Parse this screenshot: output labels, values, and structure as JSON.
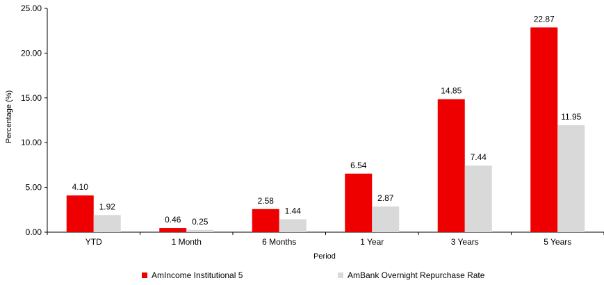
{
  "chart_data": {
    "type": "bar",
    "categories": [
      "YTD",
      "1 Month",
      "6 Months",
      "1 Year",
      "3 Years",
      "5 Years"
    ],
    "series": [
      {
        "name": "AmIncome Institutional 5",
        "color": "#ee0000",
        "values": [
          4.1,
          0.46,
          2.58,
          6.54,
          14.85,
          22.87
        ]
      },
      {
        "name": "AmBank Overnight Repurchase Rate",
        "color": "#d9d9d9",
        "values": [
          1.92,
          0.25,
          1.44,
          2.87,
          7.44,
          11.95
        ]
      }
    ],
    "xlabel": "Period",
    "ylabel": "Percentage (%)",
    "ylim": [
      0,
      25
    ],
    "yticks": [
      "0.00",
      "5.00",
      "10.00",
      "15.00",
      "20.00",
      "25.00"
    ],
    "grid": false,
    "legend_position": "bottom"
  }
}
